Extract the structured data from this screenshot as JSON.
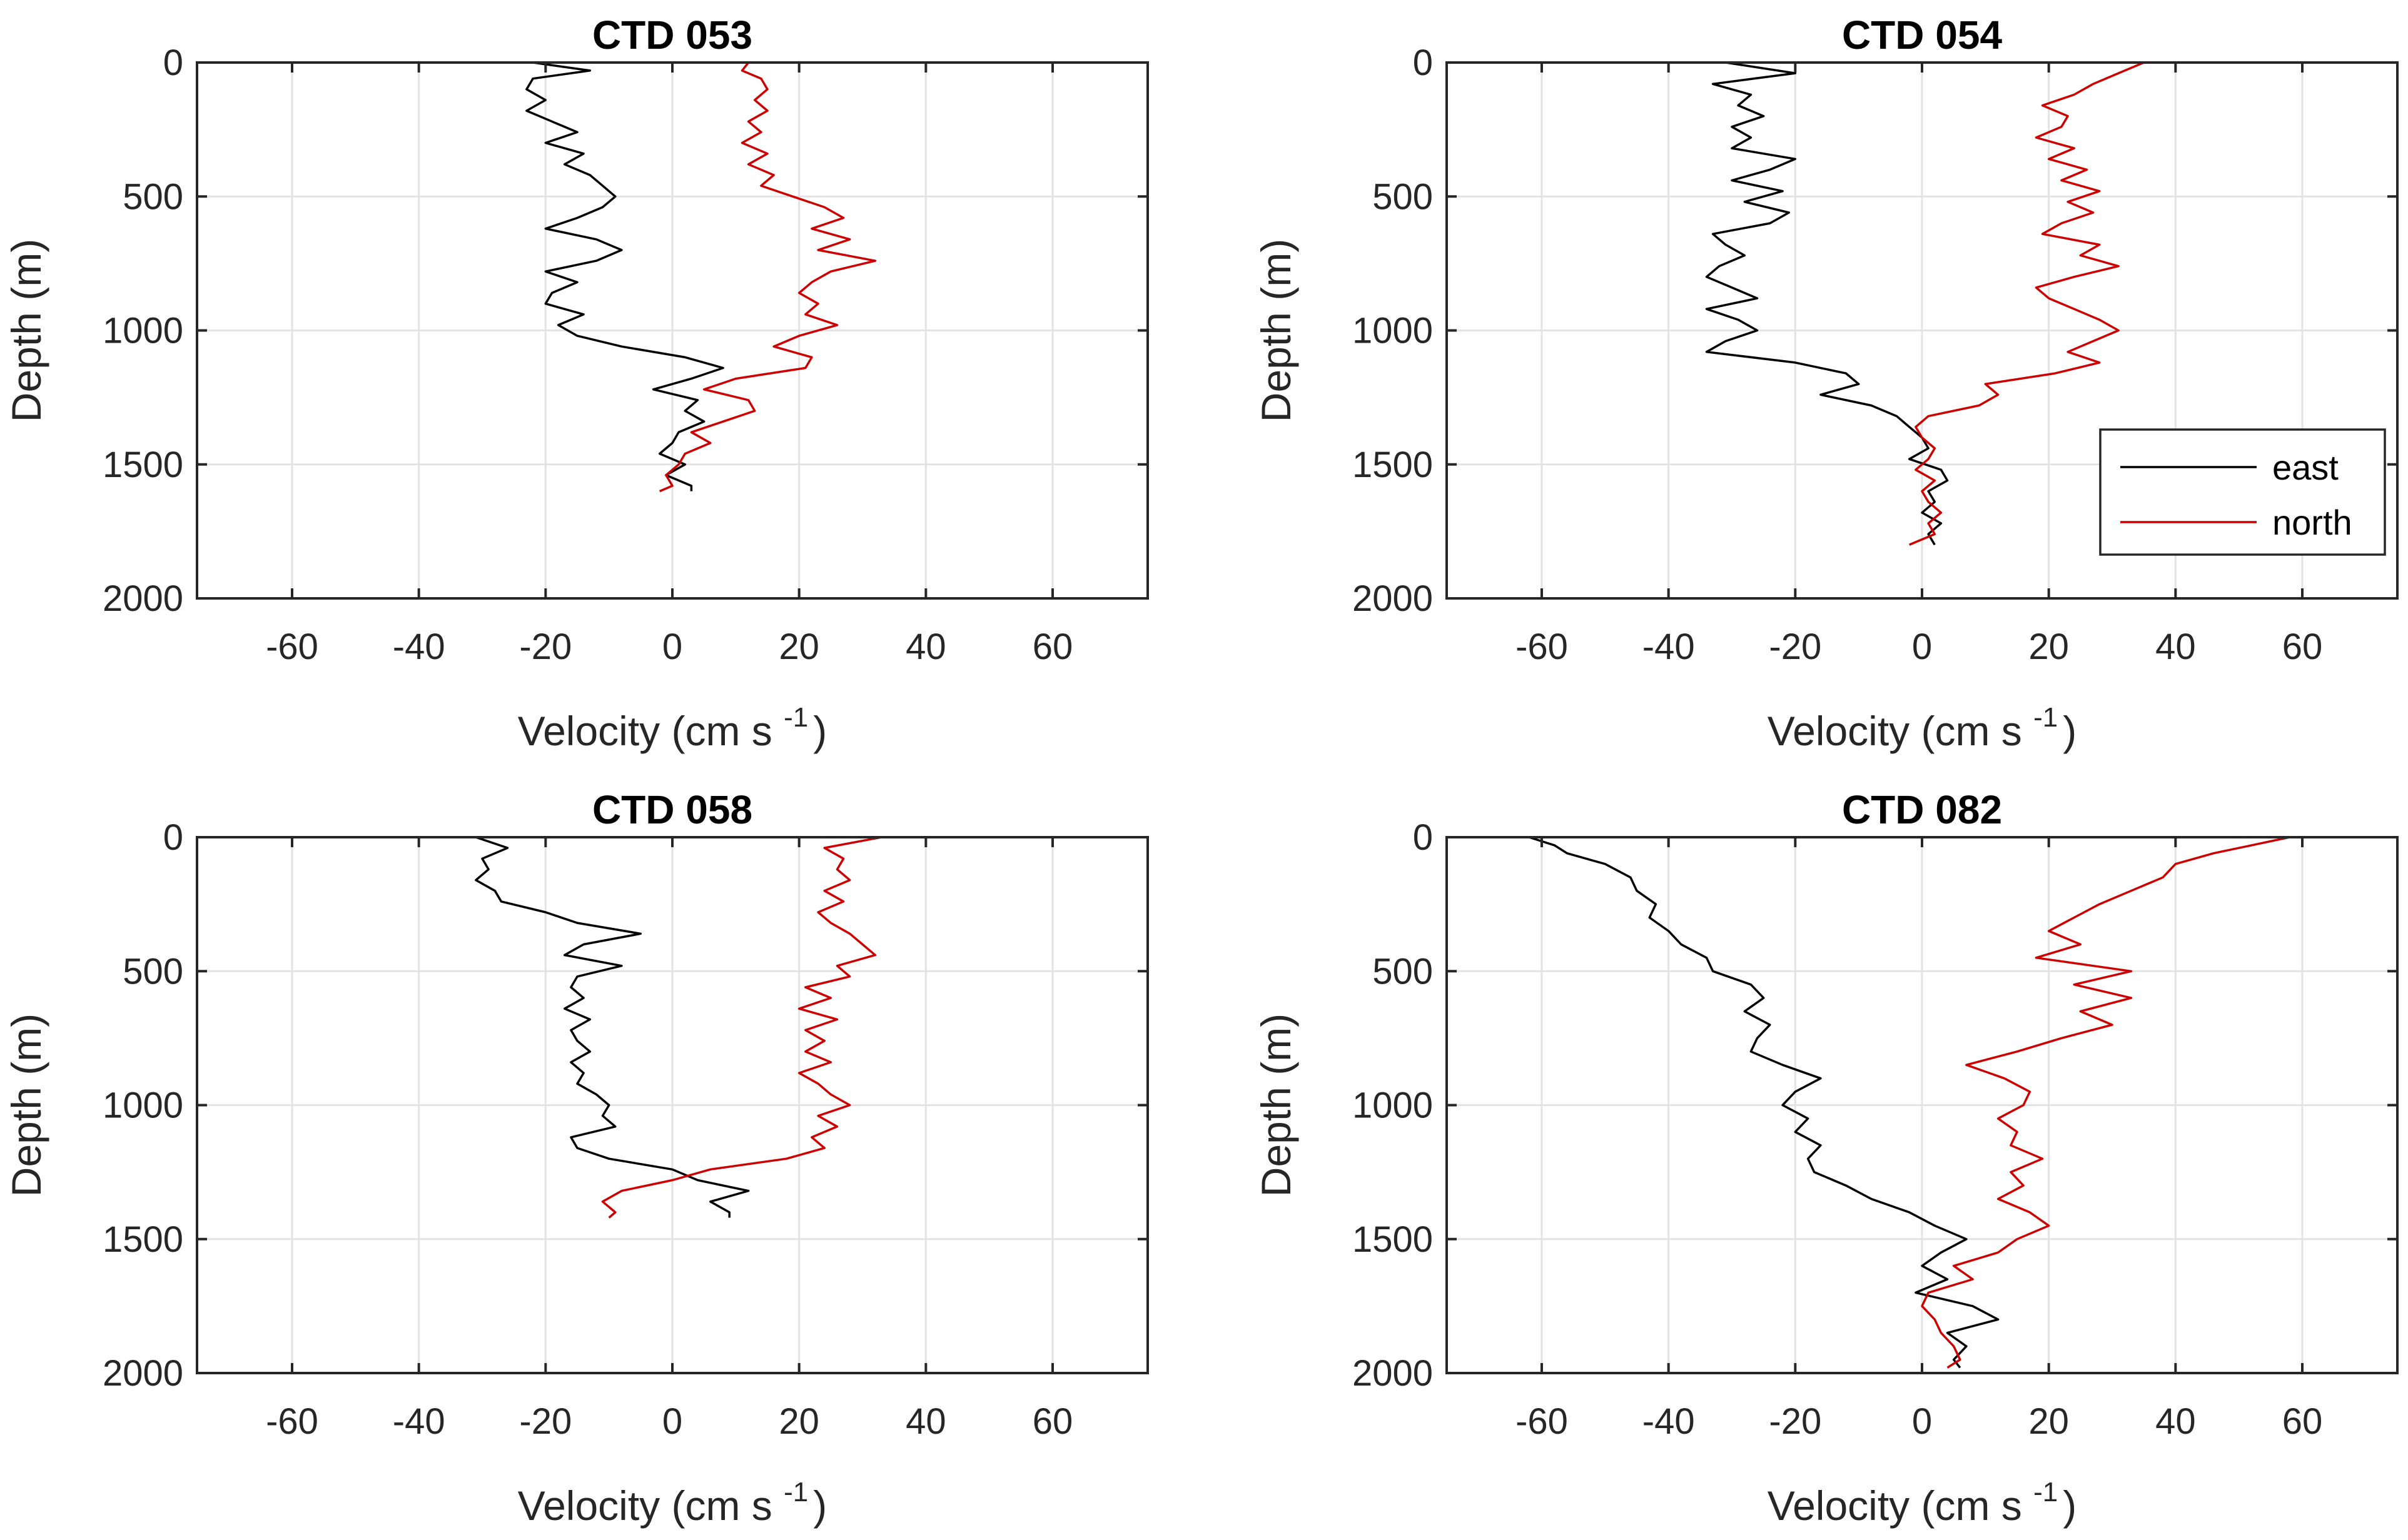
{
  "chart_data": [
    {
      "type": "line",
      "title": "CTD 053",
      "xlabel": "Velocity (cm s",
      "xlabel_superscript": "-1",
      "xlabel_suffix": ")",
      "ylabel": "Depth (m)",
      "xlim": [
        -75,
        75
      ],
      "ylim": [
        0,
        2000
      ],
      "y_reversed": true,
      "xticks": [
        -60,
        -40,
        -20,
        0,
        20,
        40,
        60
      ],
      "yticks": [
        0,
        500,
        1000,
        1500,
        2000
      ],
      "grid": true,
      "series": [
        {
          "name": "east",
          "color": "#000000",
          "depth": [
            0,
            30,
            60,
            100,
            140,
            180,
            220,
            260,
            300,
            340,
            380,
            420,
            460,
            500,
            540,
            580,
            620,
            660,
            700,
            740,
            780,
            820,
            860,
            900,
            940,
            980,
            1020,
            1060,
            1100,
            1140,
            1180,
            1220,
            1260,
            1300,
            1340,
            1380,
            1420,
            1460,
            1500,
            1540,
            1580,
            1600
          ],
          "values": [
            -22,
            -13,
            -22,
            -23,
            -20,
            -23,
            -19,
            -15,
            -20,
            -14,
            -17,
            -13,
            -11,
            -9,
            -11,
            -15,
            -20,
            -12,
            -8,
            -12,
            -20,
            -15,
            -19,
            -20,
            -14,
            -18,
            -15,
            -8,
            2,
            8,
            3,
            -3,
            4,
            2,
            5,
            1,
            0,
            -2,
            2,
            -1,
            3,
            3
          ]
        },
        {
          "name": "north",
          "color": "#cc0000",
          "depth": [
            0,
            30,
            60,
            100,
            140,
            180,
            220,
            260,
            300,
            340,
            380,
            420,
            460,
            500,
            540,
            580,
            620,
            660,
            700,
            740,
            780,
            820,
            860,
            900,
            940,
            980,
            1020,
            1060,
            1100,
            1140,
            1180,
            1220,
            1260,
            1300,
            1340,
            1380,
            1420,
            1460,
            1500,
            1540,
            1580,
            1600
          ],
          "values": [
            12,
            11,
            14,
            15,
            13,
            15,
            12,
            14,
            11,
            15,
            12,
            16,
            14,
            19,
            24,
            27,
            22,
            28,
            23,
            32,
            25,
            22,
            20,
            23,
            21,
            26,
            20,
            16,
            22,
            21,
            10,
            5,
            12,
            13,
            8,
            3,
            6,
            2,
            1,
            -1,
            0,
            -2
          ]
        }
      ]
    },
    {
      "type": "line",
      "title": "CTD 054",
      "xlabel": "Velocity (cm s",
      "xlabel_superscript": "-1",
      "xlabel_suffix": ")",
      "ylabel": "Depth (m)",
      "xlim": [
        -75,
        75
      ],
      "ylim": [
        0,
        2000
      ],
      "y_reversed": true,
      "xticks": [
        -60,
        -40,
        -20,
        0,
        20,
        40,
        60
      ],
      "yticks": [
        0,
        500,
        1000,
        1500,
        2000
      ],
      "grid": true,
      "legend": {
        "position": "lower-right",
        "entries": [
          "east",
          "north"
        ]
      },
      "series": [
        {
          "name": "east",
          "color": "#000000",
          "depth": [
            0,
            40,
            80,
            120,
            160,
            200,
            240,
            280,
            320,
            360,
            400,
            440,
            480,
            520,
            560,
            600,
            640,
            680,
            720,
            760,
            800,
            840,
            880,
            920,
            960,
            1000,
            1040,
            1080,
            1120,
            1160,
            1200,
            1240,
            1280,
            1320,
            1360,
            1400,
            1440,
            1480,
            1520,
            1560,
            1600,
            1640,
            1680,
            1720,
            1760,
            1800
          ],
          "values": [
            -31,
            -20,
            -33,
            -27,
            -29,
            -25,
            -30,
            -27,
            -30,
            -20,
            -24,
            -30,
            -22,
            -28,
            -21,
            -24,
            -33,
            -31,
            -28,
            -32,
            -34,
            -30,
            -26,
            -34,
            -29,
            -26,
            -31,
            -34,
            -20,
            -12,
            -10,
            -16,
            -8,
            -4,
            -2,
            0,
            1,
            -2,
            3,
            4,
            1,
            2,
            0,
            3,
            1,
            2
          ]
        },
        {
          "name": "north",
          "color": "#cc0000",
          "depth": [
            0,
            40,
            80,
            120,
            160,
            200,
            240,
            280,
            320,
            360,
            400,
            440,
            480,
            520,
            560,
            600,
            640,
            680,
            720,
            760,
            800,
            840,
            880,
            920,
            960,
            1000,
            1040,
            1080,
            1120,
            1160,
            1200,
            1240,
            1280,
            1320,
            1360,
            1400,
            1440,
            1480,
            1520,
            1560,
            1600,
            1640,
            1680,
            1720,
            1760,
            1800
          ],
          "values": [
            35,
            31,
            27,
            24,
            19,
            23,
            22,
            18,
            24,
            20,
            26,
            22,
            28,
            23,
            27,
            22,
            19,
            28,
            25,
            31,
            24,
            18,
            20,
            24,
            28,
            31,
            27,
            23,
            28,
            21,
            10,
            12,
            9,
            1,
            -1,
            0,
            2,
            1,
            -1,
            2,
            0,
            1,
            3,
            1,
            2,
            -2
          ]
        }
      ]
    },
    {
      "type": "line",
      "title": "CTD 058",
      "xlabel": "Velocity (cm s",
      "xlabel_superscript": "-1",
      "xlabel_suffix": ")",
      "ylabel": "Depth (m)",
      "xlim": [
        -75,
        75
      ],
      "ylim": [
        0,
        2000
      ],
      "y_reversed": true,
      "xticks": [
        -60,
        -40,
        -20,
        0,
        20,
        40,
        60
      ],
      "yticks": [
        0,
        500,
        1000,
        1500,
        2000
      ],
      "grid": true,
      "series": [
        {
          "name": "east",
          "color": "#000000",
          "depth": [
            0,
            40,
            80,
            120,
            160,
            200,
            240,
            280,
            320,
            360,
            400,
            440,
            480,
            520,
            560,
            600,
            640,
            680,
            720,
            760,
            800,
            840,
            880,
            920,
            960,
            1000,
            1040,
            1080,
            1120,
            1160,
            1200,
            1240,
            1280,
            1320,
            1360,
            1400,
            1420
          ],
          "values": [
            -31,
            -26,
            -30,
            -29,
            -31,
            -28,
            -27,
            -20,
            -15,
            -5,
            -14,
            -17,
            -8,
            -15,
            -16,
            -14,
            -17,
            -13,
            -16,
            -15,
            -13,
            -16,
            -14,
            -15,
            -12,
            -10,
            -11,
            -9,
            -16,
            -15,
            -10,
            0,
            4,
            12,
            6,
            9,
            9
          ]
        },
        {
          "name": "north",
          "color": "#cc0000",
          "depth": [
            0,
            40,
            80,
            120,
            160,
            200,
            240,
            280,
            320,
            360,
            400,
            440,
            480,
            520,
            560,
            600,
            640,
            680,
            720,
            760,
            800,
            840,
            880,
            920,
            960,
            1000,
            1040,
            1080,
            1120,
            1160,
            1200,
            1240,
            1280,
            1320,
            1360,
            1400,
            1420
          ],
          "values": [
            33,
            24,
            27,
            26,
            28,
            24,
            27,
            23,
            25,
            28,
            30,
            32,
            26,
            28,
            21,
            25,
            20,
            26,
            21,
            24,
            21,
            25,
            20,
            23,
            25,
            28,
            23,
            26,
            22,
            24,
            18,
            6,
            0,
            -8,
            -11,
            -9,
            -10
          ]
        }
      ]
    },
    {
      "type": "line",
      "title": "CTD 082",
      "xlabel": "Velocity (cm s",
      "xlabel_superscript": "-1",
      "xlabel_suffix": ")",
      "ylabel": "Depth (m)",
      "xlim": [
        -75,
        75
      ],
      "ylim": [
        0,
        2000
      ],
      "y_reversed": true,
      "xticks": [
        -60,
        -40,
        -20,
        0,
        20,
        40,
        60
      ],
      "yticks": [
        0,
        500,
        1000,
        1500,
        2000
      ],
      "grid": true,
      "series": [
        {
          "name": "east",
          "color": "#000000",
          "depth": [
            0,
            30,
            60,
            100,
            150,
            200,
            250,
            300,
            350,
            400,
            450,
            500,
            550,
            600,
            650,
            700,
            750,
            800,
            850,
            900,
            950,
            1000,
            1050,
            1100,
            1150,
            1200,
            1250,
            1300,
            1350,
            1400,
            1450,
            1500,
            1550,
            1600,
            1650,
            1700,
            1750,
            1800,
            1850,
            1900,
            1950,
            1980
          ],
          "values": [
            -62,
            -58,
            -56,
            -50,
            -46,
            -45,
            -42,
            -43,
            -40,
            -38,
            -34,
            -33,
            -27,
            -25,
            -28,
            -24,
            -26,
            -27,
            -22,
            -16,
            -20,
            -22,
            -18,
            -20,
            -16,
            -18,
            -17,
            -12,
            -8,
            -2,
            2,
            7,
            3,
            0,
            4,
            -1,
            8,
            12,
            4,
            7,
            5,
            6
          ]
        },
        {
          "name": "north",
          "color": "#cc0000",
          "depth": [
            0,
            30,
            60,
            100,
            150,
            200,
            250,
            300,
            350,
            400,
            450,
            500,
            550,
            600,
            650,
            700,
            750,
            800,
            850,
            900,
            950,
            1000,
            1050,
            1100,
            1150,
            1200,
            1250,
            1300,
            1350,
            1400,
            1450,
            1500,
            1550,
            1600,
            1650,
            1700,
            1750,
            1800,
            1850,
            1900,
            1950,
            1980
          ],
          "values": [
            58,
            52,
            46,
            40,
            38,
            33,
            28,
            24,
            20,
            25,
            18,
            33,
            24,
            33,
            25,
            30,
            22,
            15,
            7,
            13,
            17,
            16,
            12,
            15,
            14,
            19,
            14,
            16,
            12,
            17,
            20,
            15,
            12,
            5,
            8,
            1,
            0,
            2,
            3,
            5,
            6,
            4
          ]
        }
      ]
    }
  ]
}
